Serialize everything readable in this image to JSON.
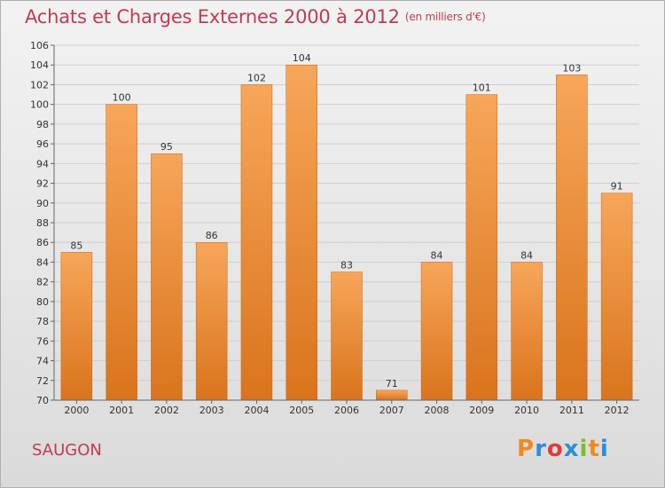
{
  "header": {
    "title": "Achats et Charges Externes 2000 à 2012",
    "unit": "(en milliers d'€)"
  },
  "footer": {
    "location": "SAUGON",
    "brand_letters": [
      "P",
      "r",
      "o",
      "x",
      "i",
      "t",
      "i"
    ],
    "brand_colors": [
      "#f08a1c",
      "#2a8fd6",
      "#e23b3b",
      "#2a8fd6",
      "#7bbf2a",
      "#f08a1c",
      "#2a8fd6"
    ]
  },
  "colors": {
    "bar_light": "#f7a65a",
    "bar_dark": "#d9741c",
    "grid": "#cfcfcf",
    "axis": "#666666"
  },
  "chart_data": {
    "type": "bar",
    "title": "Achats et Charges Externes 2000 à 2012",
    "subtitle": "(en milliers d'€)",
    "xlabel": "",
    "ylabel": "",
    "categories": [
      "2000",
      "2001",
      "2002",
      "2003",
      "2004",
      "2005",
      "2006",
      "2007",
      "2008",
      "2009",
      "2010",
      "2011",
      "2012"
    ],
    "values": [
      85,
      100,
      95,
      86,
      102,
      104,
      83,
      71,
      84,
      101,
      84,
      103,
      91
    ],
    "ylim": [
      70,
      106
    ],
    "yticks": [
      70,
      72,
      74,
      76,
      78,
      80,
      82,
      84,
      86,
      88,
      90,
      92,
      94,
      96,
      98,
      100,
      102,
      104,
      106
    ],
    "grid": true,
    "legend": "none"
  }
}
